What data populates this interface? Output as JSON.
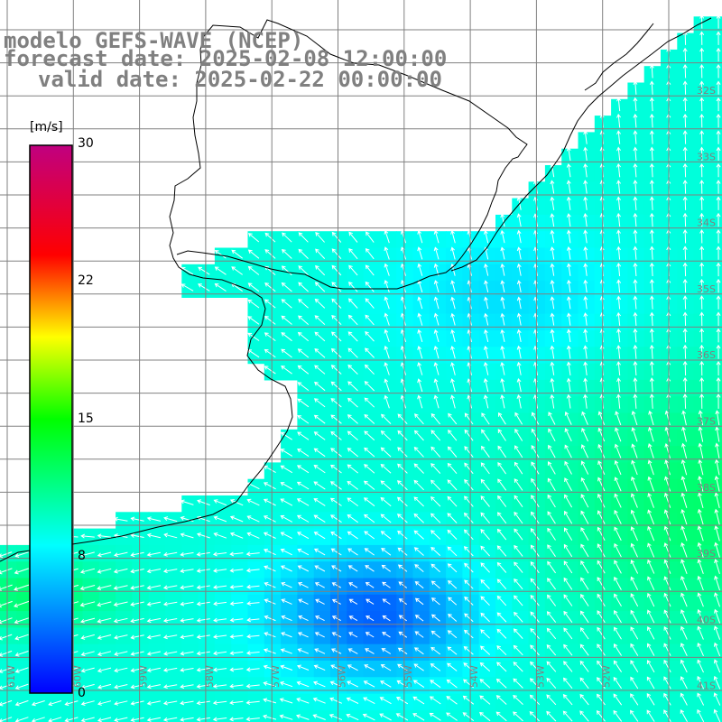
{
  "title": {
    "model": "modelo GEFS-WAVE (NCEP)",
    "forecast": "forecast date: 2025-02-08 12:00:00",
    "valid": "valid date: 2025-02-22 00:00:00"
  },
  "colorbar": {
    "unit": "[m/s]",
    "ticks": [
      "30",
      "22",
      "15",
      "8",
      "0"
    ],
    "stops": [
      "#0000ff",
      "#00ffff",
      "#00ff00",
      "#ffff00",
      "#ff0000",
      "#c00080"
    ]
  },
  "grid": {
    "lat_labels": [
      "32S",
      "33S",
      "34S",
      "35S",
      "36S",
      "37S",
      "38S",
      "39S",
      "40S",
      "41S"
    ],
    "lon_labels": [
      "61W",
      "60W",
      "59W",
      "58W",
      "57W",
      "56W",
      "55W",
      "54W",
      "53W",
      "52W"
    ]
  },
  "colors": {
    "land": "#ffffff",
    "coast": "#000000",
    "grid": "#808080",
    "arrow": "#ffffff",
    "label": "#808080"
  }
}
